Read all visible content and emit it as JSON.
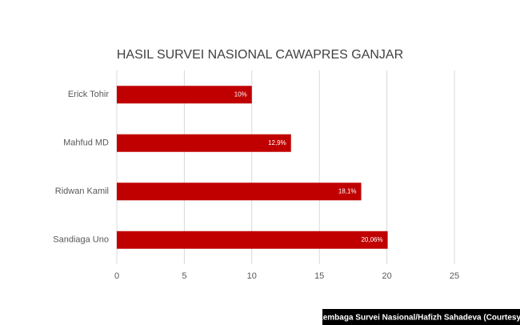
{
  "chart_data": {
    "type": "hbar",
    "title": "HASIL SURVEI NASIONAL CAWAPRES GANJAR",
    "categories": [
      "Erick Tohir",
      "Mahfud MD",
      "Ridwan Kamil",
      "Sandiaga Uno"
    ],
    "values": [
      10,
      12.9,
      18.1,
      20.06
    ],
    "value_labels": [
      "10%",
      "12,9%",
      "18,1%",
      "20,06%"
    ],
    "color": "#c00000",
    "xlim": [
      0,
      25
    ],
    "xticks": [
      0,
      5,
      10,
      15,
      20,
      25
    ],
    "grid": true
  },
  "credit": "Lembaga Survei Nasional/Hafizh Sahadeva (Courtesy)"
}
